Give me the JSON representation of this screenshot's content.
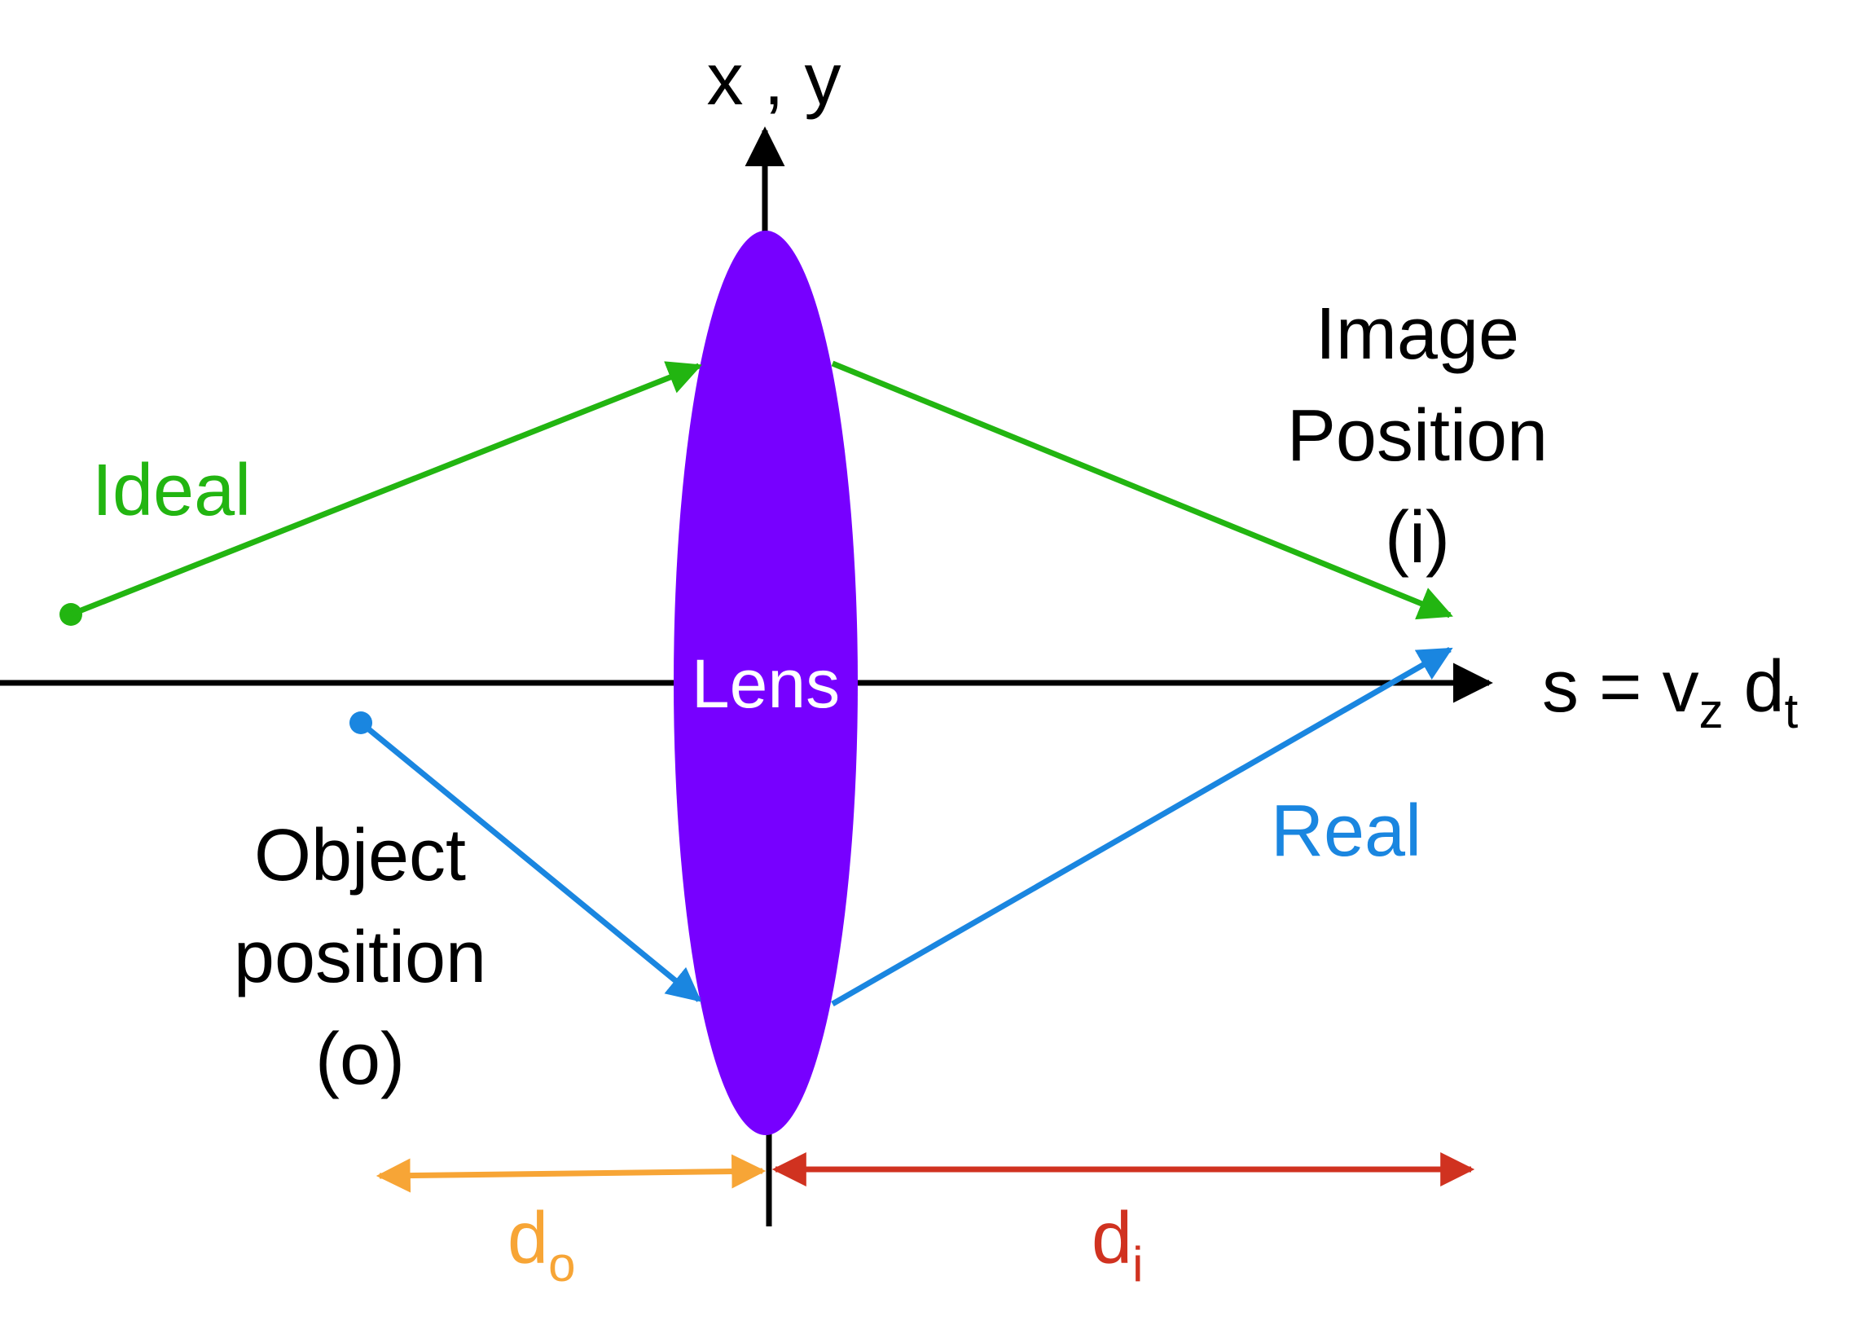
{
  "axis": {
    "vertical_label": "x , y",
    "optical_axis_label": {
      "base": "s = v",
      "sub1": "z",
      "mid": " d",
      "sub2": "t"
    }
  },
  "lens": {
    "label": "Lens"
  },
  "rays": {
    "ideal": {
      "label": "Ideal"
    },
    "real": {
      "label": "Real"
    }
  },
  "object": {
    "line1": "Object",
    "line2": "position",
    "line3": "(o)"
  },
  "image": {
    "line1": "Image",
    "line2": "Position",
    "line3": "(i)"
  },
  "distances": {
    "object": {
      "base": "d",
      "sub": "o"
    },
    "image": {
      "base": "d",
      "sub": "i"
    }
  },
  "colors": {
    "lens": "#7700ff",
    "ideal": "#22b511",
    "real": "#1a86e0",
    "object_distance": "#f7a536",
    "image_distance": "#d03220",
    "axis": "#000000"
  }
}
